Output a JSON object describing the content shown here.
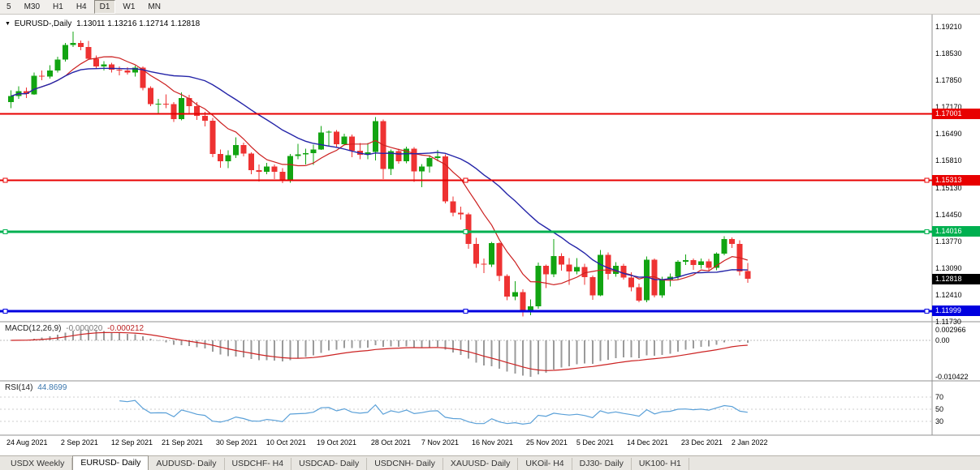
{
  "window": {
    "timeframes": [
      {
        "label": "5",
        "active": false
      },
      {
        "label": "M30",
        "active": false
      },
      {
        "label": "H1",
        "active": false
      },
      {
        "label": "H4",
        "active": false
      },
      {
        "label": "D1",
        "active": true
      },
      {
        "label": "W1",
        "active": false
      },
      {
        "label": "MN",
        "active": false
      }
    ]
  },
  "chart_data": {
    "type": "candlestick",
    "symbol": "EURUSD-",
    "timeframe": "Daily",
    "header": {
      "symbol_label": "EURUSD-,Daily",
      "ohlc_text": "1.13011 1.13216 1.12714 1.12818",
      "open": "1.13011",
      "high": "1.13216",
      "low": "1.12714",
      "close": "1.12818"
    },
    "price_axis_labels": [
      "1.19210",
      "1.18530",
      "1.17850",
      "1.17170",
      "1.16490",
      "1.15810",
      "1.15130",
      "1.14450",
      "1.13770",
      "1.13090",
      "1.12410",
      "1.11730"
    ],
    "hlines": [
      {
        "price": 1.17001,
        "label": "1.17001",
        "color": "#e80000",
        "width": 2,
        "handles": false
      },
      {
        "price": 1.15313,
        "label": "1.15313",
        "color": "#e80000",
        "width": 2,
        "handles": true
      },
      {
        "price": 1.14016,
        "label": "1.14016",
        "color": "#00b050",
        "width": 3,
        "handles": true
      },
      {
        "price": 1.11999,
        "label": "1.11999",
        "color": "#0000e0",
        "width": 3,
        "handles": true
      }
    ],
    "current_price_badge": {
      "price": 1.12818,
      "label": "1.12818",
      "color": "#000000"
    },
    "colors": {
      "up": "#12a412",
      "down": "#ee3232",
      "ma_fast": "#cc2020",
      "ma_slow": "#2424a8",
      "macd_hist": "#9a9a9a",
      "macd_signal": "#cc2222",
      "rsi_line": "#5aa0d8",
      "grid": "#c8c8c8",
      "border": "#909090"
    },
    "candles": [
      [
        1.173,
        1.176,
        1.1715,
        1.1745
      ],
      [
        1.1745,
        1.177,
        1.1738,
        1.1758
      ],
      [
        1.1758,
        1.1767,
        1.174,
        1.175
      ],
      [
        1.175,
        1.1805,
        1.1748,
        1.1797
      ],
      [
        1.1797,
        1.181,
        1.1785,
        1.1795
      ],
      [
        1.1795,
        1.1823,
        1.179,
        1.181
      ],
      [
        1.181,
        1.1845,
        1.1805,
        1.1838
      ],
      [
        1.1838,
        1.188,
        1.1833,
        1.1875
      ],
      [
        1.1875,
        1.1909,
        1.187,
        1.188
      ],
      [
        1.188,
        1.1886,
        1.1861,
        1.187
      ],
      [
        1.187,
        1.1885,
        1.1838,
        1.184
      ],
      [
        1.184,
        1.1848,
        1.1815,
        1.182
      ],
      [
        1.182,
        1.1834,
        1.181,
        1.1825
      ],
      [
        1.1825,
        1.183,
        1.1805,
        1.1812
      ],
      [
        1.1812,
        1.182,
        1.1798,
        1.181
      ],
      [
        1.181,
        1.1818,
        1.18,
        1.1805
      ],
      [
        1.1805,
        1.1822,
        1.1795,
        1.1817
      ],
      [
        1.1817,
        1.182,
        1.176,
        1.1766
      ],
      [
        1.1766,
        1.177,
        1.172,
        1.1725
      ],
      [
        1.1725,
        1.1738,
        1.17,
        1.1726
      ],
      [
        1.1726,
        1.1749,
        1.1715,
        1.1725
      ],
      [
        1.1725,
        1.173,
        1.168,
        1.1687
      ],
      [
        1.1687,
        1.1755,
        1.1684,
        1.174
      ],
      [
        1.174,
        1.1748,
        1.1702,
        1.172
      ],
      [
        1.172,
        1.173,
        1.1685,
        1.1695
      ],
      [
        1.1695,
        1.1705,
        1.1668,
        1.1683
      ],
      [
        1.1683,
        1.169,
        1.159,
        1.1598
      ],
      [
        1.1598,
        1.161,
        1.1563,
        1.158
      ],
      [
        1.158,
        1.1608,
        1.1562,
        1.1595
      ],
      [
        1.1595,
        1.164,
        1.1588,
        1.1621
      ],
      [
        1.1621,
        1.1627,
        1.1592,
        1.1599
      ],
      [
        1.1599,
        1.1602,
        1.1547,
        1.1557
      ],
      [
        1.1557,
        1.1572,
        1.1529,
        1.1553
      ],
      [
        1.1553,
        1.1576,
        1.1547,
        1.1567
      ],
      [
        1.1567,
        1.1572,
        1.1535,
        1.1553
      ],
      [
        1.1553,
        1.1562,
        1.1524,
        1.153
      ],
      [
        1.153,
        1.1598,
        1.1525,
        1.1593
      ],
      [
        1.1593,
        1.1624,
        1.1585,
        1.1597
      ],
      [
        1.1597,
        1.1612,
        1.1572,
        1.16
      ],
      [
        1.16,
        1.1622,
        1.1571,
        1.161
      ],
      [
        1.161,
        1.1669,
        1.1609,
        1.1653
      ],
      [
        1.1653,
        1.1658,
        1.1617,
        1.1655
      ],
      [
        1.1655,
        1.1659,
        1.1616,
        1.1623
      ],
      [
        1.1623,
        1.165,
        1.162,
        1.1643
      ],
      [
        1.1643,
        1.1648,
        1.159,
        1.1607
      ],
      [
        1.1607,
        1.1626,
        1.1585,
        1.1596
      ],
      [
        1.1596,
        1.1626,
        1.1585,
        1.1603
      ],
      [
        1.1603,
        1.1692,
        1.1582,
        1.1682
      ],
      [
        1.1682,
        1.1686,
        1.1535,
        1.156
      ],
      [
        1.156,
        1.161,
        1.1545,
        1.1606
      ],
      [
        1.1606,
        1.1612,
        1.1574,
        1.158
      ],
      [
        1.158,
        1.1617,
        1.1575,
        1.1612
      ],
      [
        1.1612,
        1.1616,
        1.1528,
        1.1554
      ],
      [
        1.1554,
        1.1573,
        1.1514,
        1.1567
      ],
      [
        1.1567,
        1.1595,
        1.1551,
        1.1588
      ],
      [
        1.1588,
        1.1609,
        1.158,
        1.1592
      ],
      [
        1.1592,
        1.1597,
        1.1473,
        1.1478
      ],
      [
        1.1478,
        1.149,
        1.144,
        1.1449
      ],
      [
        1.1449,
        1.1465,
        1.1432,
        1.1445
      ],
      [
        1.1445,
        1.1449,
        1.1358,
        1.137
      ],
      [
        1.137,
        1.1386,
        1.131,
        1.132
      ],
      [
        1.132,
        1.1333,
        1.1296,
        1.1318
      ],
      [
        1.1318,
        1.1375,
        1.1312,
        1.1372
      ],
      [
        1.1372,
        1.1374,
        1.1276,
        1.1289
      ],
      [
        1.1289,
        1.1293,
        1.1227,
        1.1237
      ],
      [
        1.1237,
        1.1276,
        1.1227,
        1.1248
      ],
      [
        1.1248,
        1.1255,
        1.1186,
        1.12
      ],
      [
        1.12,
        1.123,
        1.1189,
        1.1212
      ],
      [
        1.1212,
        1.1323,
        1.1206,
        1.1315
      ],
      [
        1.1315,
        1.1318,
        1.1258,
        1.1293
      ],
      [
        1.1293,
        1.1383,
        1.1286,
        1.1339
      ],
      [
        1.1339,
        1.1347,
        1.1302,
        1.1318
      ],
      [
        1.1318,
        1.1334,
        1.1267,
        1.13
      ],
      [
        1.13,
        1.1334,
        1.1293,
        1.1312
      ],
      [
        1.1312,
        1.132,
        1.1266,
        1.1286
      ],
      [
        1.1286,
        1.129,
        1.1228,
        1.124
      ],
      [
        1.124,
        1.1355,
        1.1238,
        1.1343
      ],
      [
        1.1343,
        1.1349,
        1.128,
        1.1294
      ],
      [
        1.1294,
        1.1324,
        1.1287,
        1.1315
      ],
      [
        1.1315,
        1.132,
        1.128,
        1.1285
      ],
      [
        1.1285,
        1.1298,
        1.125,
        1.126
      ],
      [
        1.126,
        1.127,
        1.1222,
        1.1227
      ],
      [
        1.1227,
        1.1338,
        1.1222,
        1.133
      ],
      [
        1.133,
        1.1333,
        1.1235,
        1.124
      ],
      [
        1.124,
        1.1287,
        1.1234,
        1.128
      ],
      [
        1.128,
        1.1295,
        1.1262,
        1.1287
      ],
      [
        1.1287,
        1.1329,
        1.1279,
        1.1325
      ],
      [
        1.1325,
        1.1344,
        1.1317,
        1.1329
      ],
      [
        1.1329,
        1.1333,
        1.1305,
        1.1317
      ],
      [
        1.1317,
        1.1333,
        1.1308,
        1.1326
      ],
      [
        1.1326,
        1.1332,
        1.1302,
        1.131
      ],
      [
        1.131,
        1.1349,
        1.1304,
        1.1346
      ],
      [
        1.1346,
        1.139,
        1.1342,
        1.1383
      ],
      [
        1.1383,
        1.1387,
        1.136,
        1.137
      ],
      [
        1.137,
        1.138,
        1.129,
        1.13
      ],
      [
        1.13011,
        1.13216,
        1.12714,
        1.12818
      ]
    ],
    "date_labels": [
      {
        "text": "24 Aug 2021",
        "i": 0
      },
      {
        "text": "2 Sep 2021",
        "i": 7
      },
      {
        "text": "12 Sep 2021",
        "i": 13.5
      },
      {
        "text": "21 Sep 2021",
        "i": 20
      },
      {
        "text": "30 Sep 2021",
        "i": 27
      },
      {
        "text": "10 Oct 2021",
        "i": 33.5
      },
      {
        "text": "19 Oct 2021",
        "i": 40
      },
      {
        "text": "28 Oct 2021",
        "i": 47
      },
      {
        "text": "7 Nov 2021",
        "i": 53.5
      },
      {
        "text": "16 Nov 2021",
        "i": 60
      },
      {
        "text": "25 Nov 2021",
        "i": 67
      },
      {
        "text": "5 Dec 2021",
        "i": 73.5
      },
      {
        "text": "14 Dec 2021",
        "i": 80
      },
      {
        "text": "23 Dec 2021",
        "i": 87
      },
      {
        "text": "2 Jan 2022",
        "i": 93.5
      }
    ]
  },
  "macd": {
    "label": "MACD(12,26,9)",
    "value_main": "-0.000020",
    "value_signal": "-0.000212",
    "params": {
      "fast": 12,
      "slow": 26,
      "signal": 9
    },
    "axis": [
      {
        "v": 0.002966,
        "label": "0.002966"
      },
      {
        "v": 0,
        "label": "0.00"
      },
      {
        "v": -0.010422,
        "label": "-0.010422"
      }
    ]
  },
  "rsi": {
    "label": "RSI(14)",
    "value": "44.8699",
    "period": 14,
    "levels": [
      {
        "v": 70,
        "label": "70"
      },
      {
        "v": 50,
        "label": "50"
      },
      {
        "v": 30,
        "label": "30"
      }
    ]
  },
  "tabs": [
    {
      "label": "USDX Weekly",
      "active": false
    },
    {
      "label": "EURUSD- Daily",
      "active": true
    },
    {
      "label": "AUDUSD- Daily",
      "active": false
    },
    {
      "label": "USDCHF- H4",
      "active": false
    },
    {
      "label": "USDCAD- Daily",
      "active": false
    },
    {
      "label": "USDCNH- Daily",
      "active": false
    },
    {
      "label": "XAUUSD- Daily",
      "active": false
    },
    {
      "label": "UKOil- H4",
      "active": false
    },
    {
      "label": "DJ30- Daily",
      "active": false
    },
    {
      "label": "UK100- H1",
      "active": false
    }
  ]
}
